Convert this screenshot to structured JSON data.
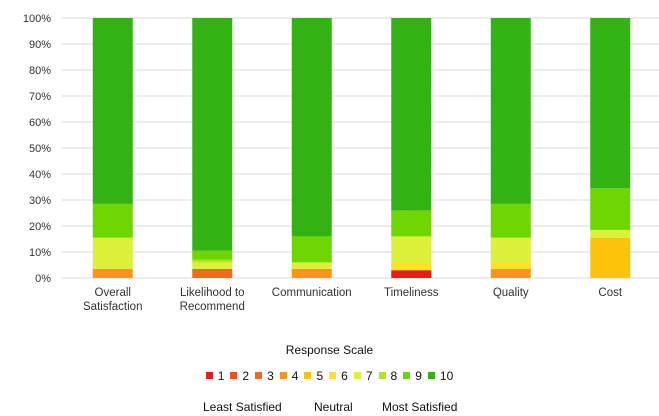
{
  "chart_data": {
    "type": "bar",
    "stacked": true,
    "categories": [
      "Overall\nSatisfaction",
      "Likelihood to\nRecommend",
      "Communication",
      "Timeliness",
      "Quality",
      "Cost"
    ],
    "y_ticks": [
      "0%",
      "10%",
      "20%",
      "30%",
      "40%",
      "50%",
      "60%",
      "70%",
      "80%",
      "90%",
      "100%"
    ],
    "ylim": [
      0,
      100
    ],
    "grid": true,
    "legend_title": "Response Scale",
    "legend_placement": "bottom",
    "series": [
      {
        "name": "1",
        "color": "#e41c1c",
        "values": [
          0,
          0,
          0,
          3,
          0,
          0
        ]
      },
      {
        "name": "2",
        "color": "#f04e1f",
        "values": [
          0,
          0,
          0,
          0,
          0,
          0
        ]
      },
      {
        "name": "3",
        "color": "#f26a21",
        "values": [
          0,
          3.5,
          0,
          0,
          0,
          0
        ]
      },
      {
        "name": "4",
        "color": "#f7951e",
        "values": [
          3.5,
          0,
          3.5,
          0,
          3.5,
          0
        ]
      },
      {
        "name": "5",
        "color": "#fbc40a",
        "values": [
          0,
          0,
          0,
          0,
          0,
          15.5
        ]
      },
      {
        "name": "6",
        "color": "#f9e227",
        "values": [
          0,
          0,
          0,
          3,
          2.5,
          0
        ]
      },
      {
        "name": "7",
        "color": "#ddf03a",
        "values": [
          12,
          2.5,
          2.5,
          10,
          9.5,
          3
        ]
      },
      {
        "name": "8",
        "color": "#b2e616",
        "values": [
          0,
          1,
          0,
          0,
          0,
          0
        ]
      },
      {
        "name": "9",
        "color": "#6ed601",
        "values": [
          13,
          3.5,
          10,
          10,
          13,
          16
        ]
      },
      {
        "name": "10",
        "color": "#33b313",
        "values": [
          71.5,
          89.5,
          84,
          74,
          71.5,
          65.5
        ]
      }
    ],
    "scale_labels": [
      "Least Satisfied",
      "Neutral",
      "Most Satisfied"
    ]
  }
}
